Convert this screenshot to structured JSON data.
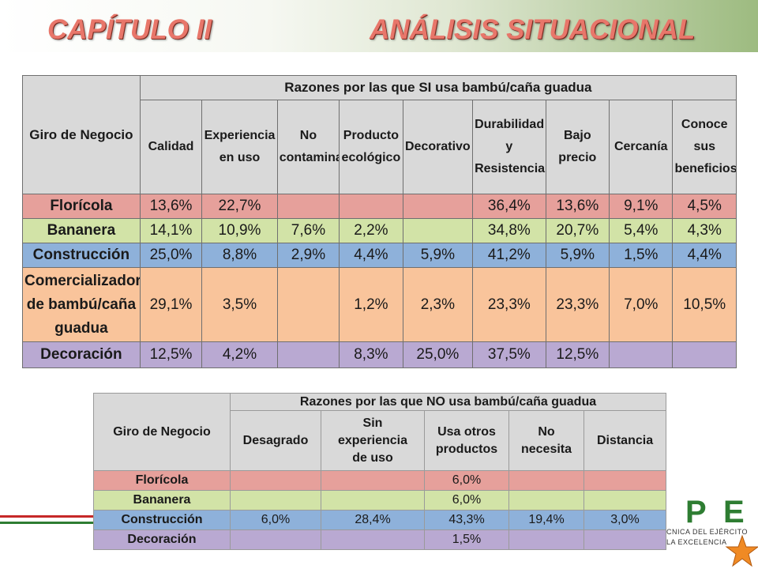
{
  "header": {
    "chapter": "CAPÍTULO II",
    "section": "ANÁLISIS SITUACIONAL"
  },
  "table_si": {
    "corner": "Giro de Negocio",
    "group_title": "Razones por las que SI usa bambú/caña guadua",
    "columns": [
      [
        "Calidad"
      ],
      [
        "Experiencia",
        "en uso"
      ],
      [
        "No",
        "contamina"
      ],
      [
        "Producto",
        "ecológico"
      ],
      [
        "Decorativo"
      ],
      [
        "Durabilidad",
        "y",
        "Resistencia"
      ],
      [
        "Bajo",
        "precio"
      ],
      [
        "Cercanía"
      ],
      [
        "Conoce",
        "sus",
        "beneficios"
      ]
    ],
    "rows": [
      {
        "label": [
          "Florícola"
        ],
        "values": [
          "13,6%",
          "22,7%",
          "",
          "",
          "",
          "36,4%",
          "13,6%",
          "9,1%",
          "4,5%"
        ]
      },
      {
        "label": [
          "Bananera"
        ],
        "values": [
          "14,1%",
          "10,9%",
          "7,6%",
          "2,2%",
          "",
          "34,8%",
          "20,7%",
          "5,4%",
          "4,3%"
        ]
      },
      {
        "label": [
          "Construcción"
        ],
        "values": [
          "25,0%",
          "8,8%",
          "2,9%",
          "4,4%",
          "5,9%",
          "41,2%",
          "5,9%",
          "1,5%",
          "4,4%"
        ]
      },
      {
        "label": [
          "Comercializadora",
          "de bambú/caña",
          "guadua"
        ],
        "values": [
          "29,1%",
          "3,5%",
          "",
          "1,2%",
          "2,3%",
          "23,3%",
          "23,3%",
          "7,0%",
          "10,5%"
        ]
      },
      {
        "label": [
          "Decoración"
        ],
        "values": [
          "12,5%",
          "4,2%",
          "",
          "8,3%",
          "25,0%",
          "37,5%",
          "12,5%",
          "",
          ""
        ]
      }
    ]
  },
  "table_no": {
    "corner": "Giro de Negocio",
    "group_title": "Razones por las que NO usa bambú/caña guadua",
    "columns": [
      [
        "Desagrado"
      ],
      [
        "Sin",
        "experiencia",
        "de uso"
      ],
      [
        "Usa otros",
        "productos"
      ],
      [
        "No",
        "necesita"
      ],
      [
        "Distancia"
      ]
    ],
    "rows": [
      {
        "label": "Florícola",
        "values": [
          "",
          "",
          "6,0%",
          "",
          ""
        ]
      },
      {
        "label": "Bananera",
        "values": [
          "",
          "",
          "6,0%",
          "",
          ""
        ]
      },
      {
        "label": "Construcción",
        "values": [
          "6,0%",
          "28,4%",
          "43,3%",
          "19,4%",
          "3,0%"
        ]
      },
      {
        "label": "Decoración",
        "values": [
          "",
          "",
          "1,5%",
          "",
          ""
        ]
      }
    ]
  },
  "row_colors": [
    "#e6a09b",
    "#d2e3a7",
    "#8eb1da",
    "#f9c49b",
    "#b9a9d2"
  ],
  "logo": {
    "letters_left": "P",
    "letters_right": "E",
    "line1": "CNICA DEL EJÉRCITO",
    "line2": "LA EXCELENCIA"
  },
  "colors": {
    "title": "#e8766a",
    "header_bg": "#d9d9d9",
    "logo_green": "#2e7d32",
    "star": "#f08a24"
  }
}
